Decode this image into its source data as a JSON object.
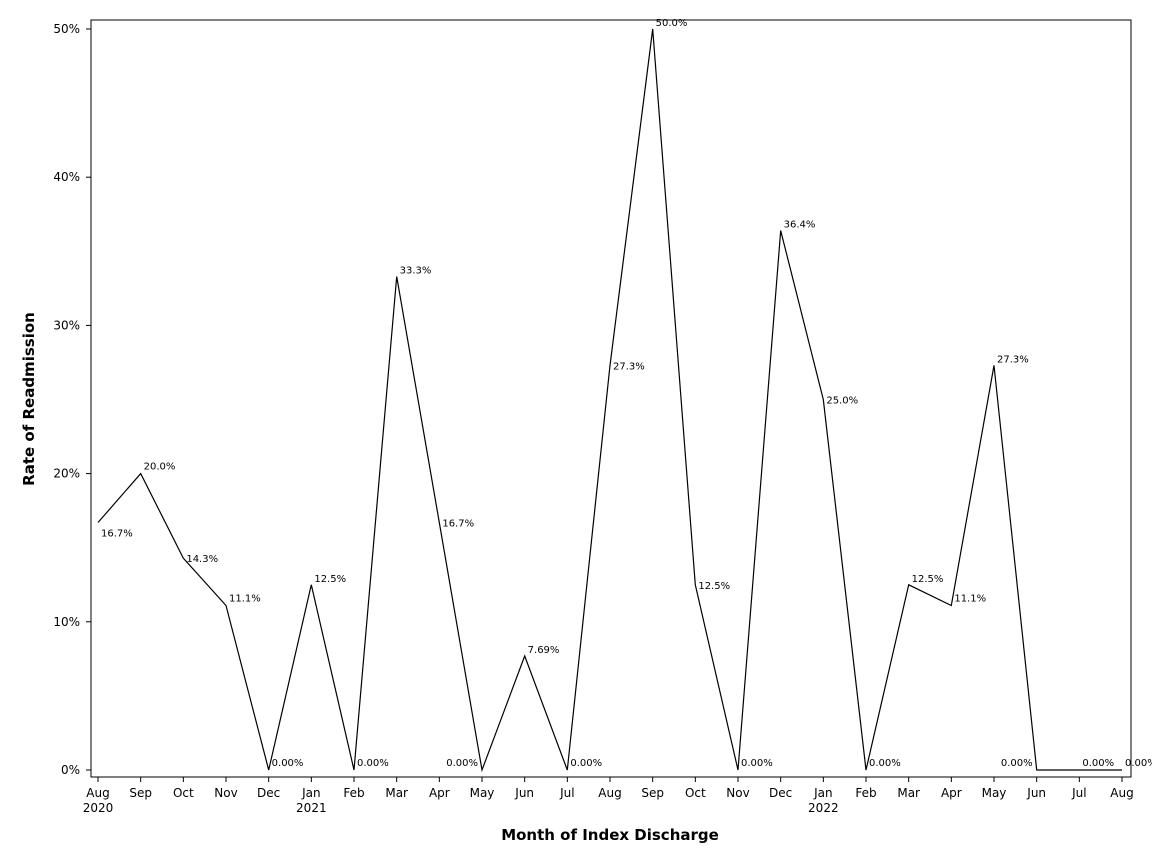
{
  "chart_data": {
    "type": "line",
    "xlabel": "Month of Index Discharge",
    "ylabel": "Rate of Readmission",
    "ylim": [
      0,
      50
    ],
    "y_ticks": [
      0,
      10,
      20,
      30,
      40,
      50
    ],
    "y_tick_labels": [
      "0%",
      "10%",
      "20%",
      "30%",
      "40%",
      "50%"
    ],
    "categories": [
      "Aug",
      "Sep",
      "Oct",
      "Nov",
      "Dec",
      "Jan",
      "Feb",
      "Mar",
      "Apr",
      "May",
      "Jun",
      "Jul",
      "Aug",
      "Sep",
      "Oct",
      "Nov",
      "Dec",
      "Jan",
      "Feb",
      "Mar",
      "Apr",
      "May",
      "Jun",
      "Jul",
      "Aug"
    ],
    "year_labels": [
      {
        "index": 0,
        "label": "2020"
      },
      {
        "index": 5,
        "label": "2021"
      },
      {
        "index": 17,
        "label": "2022"
      }
    ],
    "values": [
      16.7,
      20.0,
      14.3,
      11.1,
      0.0,
      12.5,
      0.0,
      33.3,
      16.7,
      0.0,
      7.69,
      0.0,
      27.3,
      50.0,
      12.5,
      0.0,
      36.4,
      25.0,
      0.0,
      12.5,
      11.1,
      27.3,
      0.0,
      0.0,
      0.0
    ],
    "data_labels": [
      "16.7%",
      "20.0%",
      "14.3%",
      "11.1%",
      "0.00%",
      "12.5%",
      "0.00%",
      "33.3%",
      "16.7%",
      "0.00%",
      "7.69%",
      "0.00%",
      "27.3%",
      "50.0%",
      "12.5%",
      "0.00%",
      "36.4%",
      "25.0%",
      "0.00%",
      "12.5%",
      "11.1%",
      "27.3%",
      "0.00%",
      "0.00%",
      "0.00%"
    ],
    "grid": false,
    "line_color": "#000000"
  }
}
